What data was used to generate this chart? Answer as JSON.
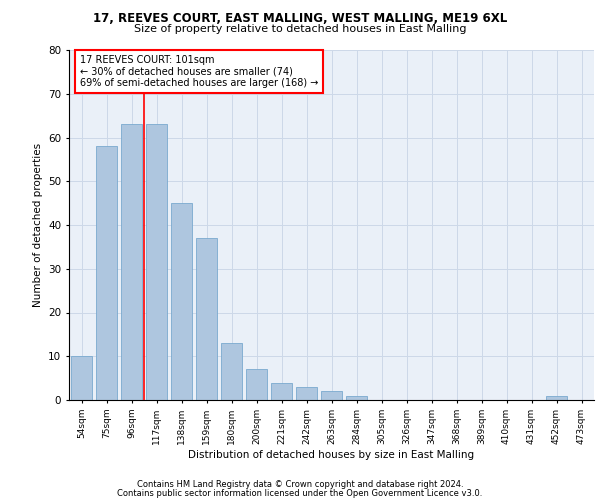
{
  "title_line1": "17, REEVES COURT, EAST MALLING, WEST MALLING, ME19 6XL",
  "title_line2": "Size of property relative to detached houses in East Malling",
  "xlabel": "Distribution of detached houses by size in East Malling",
  "ylabel": "Number of detached properties",
  "categories": [
    "54sqm",
    "75sqm",
    "96sqm",
    "117sqm",
    "138sqm",
    "159sqm",
    "180sqm",
    "200sqm",
    "221sqm",
    "242sqm",
    "263sqm",
    "284sqm",
    "305sqm",
    "326sqm",
    "347sqm",
    "368sqm",
    "389sqm",
    "410sqm",
    "431sqm",
    "452sqm",
    "473sqm"
  ],
  "values": [
    10,
    58,
    63,
    63,
    45,
    37,
    13,
    7,
    4,
    3,
    2,
    1,
    0,
    0,
    0,
    0,
    0,
    0,
    0,
    1,
    0
  ],
  "bar_color": "#aec6df",
  "bar_edge_color": "#7aaacf",
  "annotation_text": "17 REEVES COURT: 101sqm\n← 30% of detached houses are smaller (74)\n69% of semi-detached houses are larger (168) →",
  "annotation_box_color": "white",
  "annotation_box_edge": "red",
  "grid_color": "#cdd8e8",
  "bg_color": "#eaf0f8",
  "footer_line1": "Contains HM Land Registry data © Crown copyright and database right 2024.",
  "footer_line2": "Contains public sector information licensed under the Open Government Licence v3.0.",
  "ylim": [
    0,
    80
  ],
  "yticks": [
    0,
    10,
    20,
    30,
    40,
    50,
    60,
    70,
    80
  ],
  "red_line_index": 2.5
}
